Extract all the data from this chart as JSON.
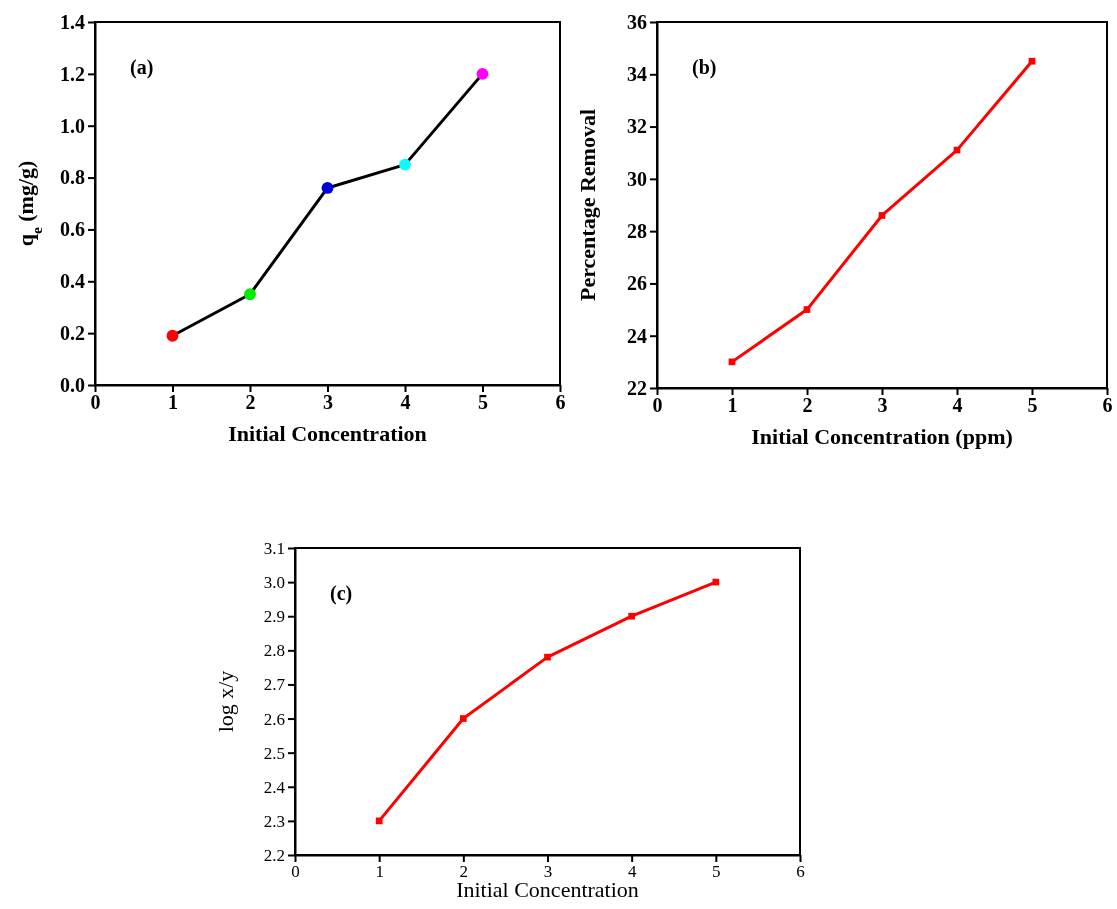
{
  "chart_data": [
    {
      "type": "line",
      "xlabel": "Initial Concentration",
      "ylabel": "q$_{e}$ (mg/g)",
      "annotations": [
        "(a)"
      ],
      "x": [
        1,
        2,
        3,
        4,
        5
      ],
      "xlim": [
        0,
        6
      ],
      "xticks": [
        0,
        1,
        2,
        3,
        4,
        5,
        6
      ],
      "ylim": [
        0,
        1.4
      ],
      "yticks": [
        {
          "value": 0,
          "label": "0.0"
        },
        0.2,
        0.4,
        0.6,
        0.8,
        {
          "value": 1,
          "label": "1.0"
        },
        1.2,
        1.4
      ],
      "marker": "circle",
      "line_style": "solid",
      "series": [
        {
          "color": "#000000",
          "colors": [
            "#ff0000",
            "#00ee00",
            "#0000dd",
            "#00ffff",
            "#ff00ff"
          ],
          "values": [
            0.19,
            0.35,
            0.76,
            0.85,
            1.2
          ]
        }
      ]
    },
    {
      "type": "line",
      "xlabel": "Initial Concentration (ppm)",
      "ylabel": "Percentage Removal",
      "annotations": [
        "(b)"
      ],
      "x": [
        1,
        2,
        3,
        4,
        5
      ],
      "xlim": [
        0,
        6
      ],
      "xticks": [
        0,
        1,
        2,
        3,
        4,
        5,
        6
      ],
      "ylim": [
        22,
        36
      ],
      "yticks": [
        22,
        24,
        26,
        28,
        30,
        32,
        34,
        36
      ],
      "marker": "square",
      "line_style": "solid",
      "series": [
        {
          "color": "#ff0000",
          "values": [
            23.0,
            25.0,
            28.6,
            31.1,
            34.5
          ]
        }
      ]
    },
    {
      "type": "line",
      "xlabel": "Initial Concentration",
      "ylabel": "log x/y",
      "annotations": [
        "(c)"
      ],
      "x": [
        1,
        2,
        3,
        4,
        5
      ],
      "xlim": [
        0,
        6
      ],
      "xticks": [
        0,
        1,
        2,
        3,
        4,
        5,
        6
      ],
      "ylim": [
        2.2,
        3.1
      ],
      "yticks": [
        2.2,
        2.3,
        2.4,
        2.5,
        2.6,
        2.7,
        2.8,
        2.9,
        {
          "value": 3,
          "label": "3.0"
        },
        3.1
      ],
      "marker": "square",
      "line_style": "solid",
      "series": [
        {
          "color": "#ff0000",
          "values": [
            2.3,
            2.6,
            2.78,
            2.9,
            3.0
          ]
        }
      ]
    }
  ]
}
